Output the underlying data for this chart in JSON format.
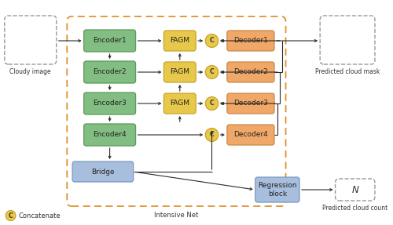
{
  "fig_width": 5.0,
  "fig_height": 2.87,
  "dpi": 100,
  "bg_color": "#ffffff",
  "encoder_color": "#82be82",
  "encoder_edge": "#5a9a5a",
  "fagm_color": "#e8c84a",
  "fagm_edge": "#c8a428",
  "decoder_color": "#f0a868",
  "decoder_edge": "#cc8848",
  "bridge_color": "#a8bedd",
  "bridge_edge": "#7898c0",
  "concat_color": "#e8c84a",
  "concat_edge": "#c8a428",
  "regression_color": "#a8bedd",
  "regression_edge": "#7898c0",
  "outer_box_color": "#e09030",
  "dashed_box_color": "#999999",
  "encoders": [
    "Encoder1",
    "Encoder2",
    "Encoder3",
    "Encoder4"
  ],
  "fagms": [
    "FAGM",
    "FAGM",
    "FAGM"
  ],
  "decoders": [
    "Decoder1",
    "Decoder2",
    "Decoder3",
    "Decoder4"
  ],
  "title_label": "Intensive Net",
  "cloudy_label": "Cloudy image",
  "mask_label": "Predicted cloud mask",
  "count_label": "Predicted cloud count",
  "concat_label": "Concatenate",
  "bridge_label": "Bridge",
  "regression_label": "Regression\nblock",
  "n_label": "N",
  "font_size": 6.5,
  "small_font_size": 5.5
}
